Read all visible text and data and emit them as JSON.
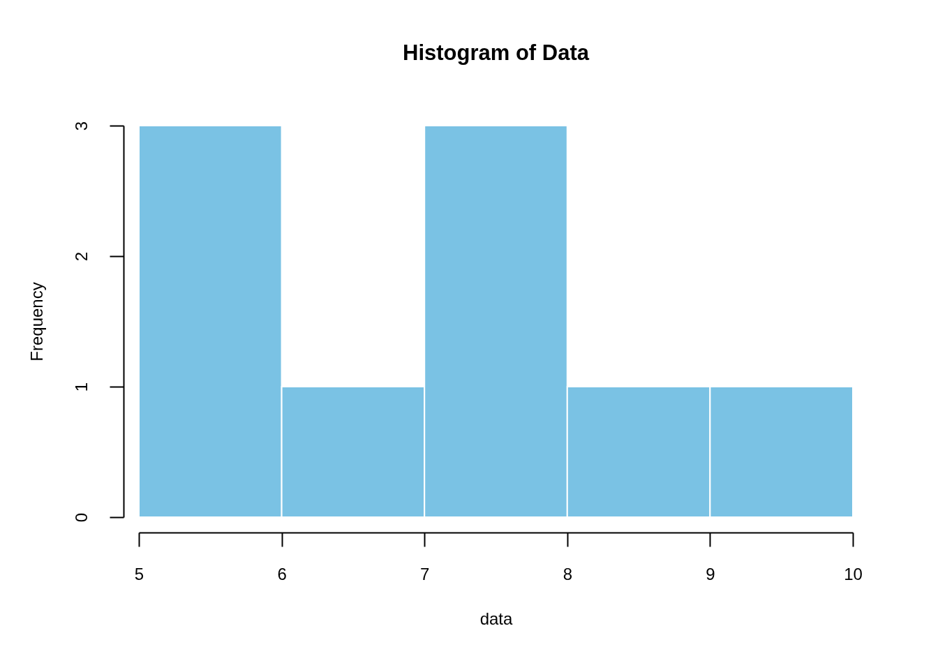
{
  "chart_data": {
    "type": "histogram",
    "title": "Histogram of Data",
    "xlabel": "data",
    "ylabel": "Frequency",
    "bins": [
      5,
      6,
      7,
      8,
      9,
      10
    ],
    "values": [
      3,
      1,
      3,
      1,
      1
    ],
    "color": "#7ac2e4",
    "xlim": [
      5,
      10
    ],
    "xticks": [
      5,
      6,
      7,
      8,
      9,
      10
    ],
    "ylim": [
      0,
      3
    ],
    "yticks": [
      0,
      1,
      2,
      3
    ],
    "grid": false
  }
}
